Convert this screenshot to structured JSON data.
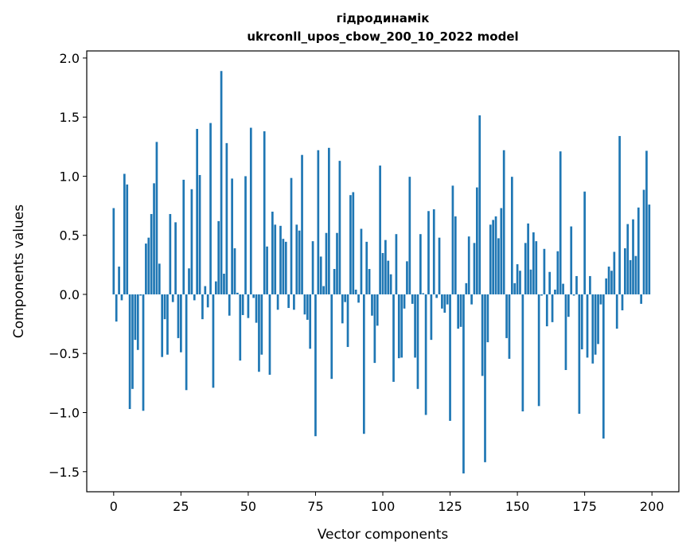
{
  "chart_data": {
    "type": "bar",
    "title": [
      "гідродинамік",
      "ukrconll_upos_cbow_200_10_2022 model"
    ],
    "xlabel": "Vector components",
    "ylabel": "Components values",
    "xlim": [
      -10,
      210
    ],
    "ylim": [
      -1.67,
      2.06
    ],
    "xticks": [
      0,
      25,
      50,
      75,
      100,
      125,
      150,
      175,
      200
    ],
    "xtick_labels": [
      "0",
      "25",
      "50",
      "75",
      "100",
      "125",
      "150",
      "175",
      "200"
    ],
    "yticks": [
      -1.5,
      -1.0,
      -0.5,
      0.0,
      0.5,
      1.0,
      1.5,
      2.0
    ],
    "ytick_labels": [
      "−1.5",
      "−1.0",
      "−0.5",
      "0.0",
      "0.5",
      "1.0",
      "1.5",
      "2.0"
    ],
    "grid": false,
    "color": "#1f77b4",
    "values": [
      0.73,
      -0.23,
      0.235,
      -0.05,
      1.02,
      0.93,
      -0.97,
      -0.8,
      -0.385,
      -0.47,
      -0.01,
      -0.985,
      0.43,
      0.48,
      0.68,
      0.94,
      1.29,
      0.26,
      -0.53,
      -0.21,
      -0.51,
      0.68,
      -0.065,
      0.61,
      -0.37,
      -0.49,
      0.97,
      -0.81,
      0.22,
      0.89,
      -0.05,
      1.4,
      1.01,
      -0.21,
      0.07,
      -0.11,
      1.45,
      -0.79,
      0.11,
      0.62,
      1.89,
      0.175,
      1.28,
      -0.18,
      0.98,
      0.39,
      0.014,
      -0.56,
      -0.175,
      1.0,
      -0.2,
      1.41,
      -0.03,
      -0.24,
      -0.655,
      -0.51,
      1.38,
      0.405,
      -0.68,
      0.7,
      0.59,
      -0.13,
      0.58,
      0.47,
      0.445,
      -0.115,
      0.985,
      -0.13,
      0.59,
      0.54,
      1.18,
      -0.17,
      -0.215,
      -0.46,
      0.45,
      -1.2,
      1.22,
      0.32,
      0.07,
      0.52,
      1.24,
      -0.715,
      0.215,
      0.52,
      1.13,
      -0.245,
      -0.065,
      -0.445,
      0.84,
      0.865,
      0.04,
      -0.07,
      0.555,
      -1.18,
      0.445,
      0.215,
      -0.18,
      -0.58,
      -0.265,
      1.09,
      0.35,
      0.46,
      0.285,
      0.17,
      -0.74,
      0.51,
      -0.54,
      -0.535,
      -0.12,
      0.28,
      0.995,
      -0.08,
      -0.535,
      -0.8,
      0.51,
      0.01,
      -1.02,
      0.705,
      -0.385,
      0.72,
      -0.03,
      0.48,
      -0.12,
      -0.155,
      -0.085,
      -1.07,
      0.92,
      0.66,
      -0.29,
      -0.275,
      -1.515,
      0.095,
      0.49,
      -0.085,
      0.435,
      0.905,
      1.515,
      -0.69,
      -1.42,
      -0.405,
      0.59,
      0.63,
      0.66,
      0.475,
      0.73,
      1.22,
      -0.37,
      -0.545,
      0.995,
      0.095,
      0.255,
      0.2,
      -0.99,
      0.435,
      0.6,
      0.21,
      0.525,
      0.45,
      -0.945,
      -0.01,
      0.385,
      -0.27,
      0.19,
      -0.235,
      0.04,
      0.365,
      1.21,
      0.09,
      -0.64,
      -0.19,
      0.575,
      -0.01,
      0.155,
      -1.01,
      -0.465,
      0.87,
      -0.535,
      0.155,
      -0.585,
      -0.51,
      -0.42,
      -0.085,
      -1.22,
      0.135,
      0.235,
      0.2,
      0.36,
      -0.29,
      1.34,
      -0.135,
      0.39,
      0.595,
      0.29,
      0.635,
      0.325,
      0.735,
      -0.08,
      0.885,
      1.215,
      0.76
    ]
  }
}
